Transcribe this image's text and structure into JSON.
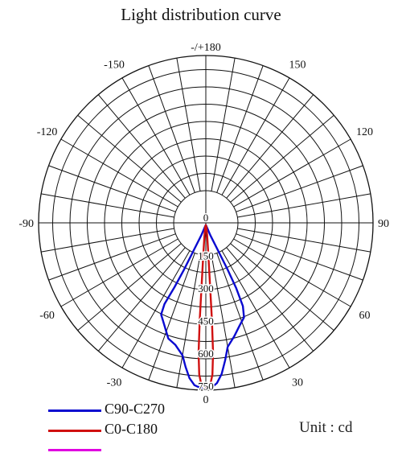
{
  "chart_data": {
    "type": "polar-line",
    "title": "Light distribution curve",
    "unit_label": "Unit : cd",
    "angle_labels": [
      {
        "angle": 0,
        "text": "0"
      },
      {
        "angle": 30,
        "text": "30"
      },
      {
        "angle": -30,
        "text": "-30"
      },
      {
        "angle": 60,
        "text": "60"
      },
      {
        "angle": -60,
        "text": "-60"
      },
      {
        "angle": 90,
        "text": "90"
      },
      {
        "angle": -90,
        "text": "-90"
      },
      {
        "angle": 120,
        "text": "120"
      },
      {
        "angle": -120,
        "text": "-120"
      },
      {
        "angle": 150,
        "text": "150"
      },
      {
        "angle": -150,
        "text": "-150"
      },
      {
        "angle": 180,
        "text": "-/+180"
      }
    ],
    "radial_ticks": [
      "0",
      "150",
      "300",
      "450",
      "600",
      "750"
    ],
    "radial_max": 750,
    "series": [
      {
        "name": "C90-C270",
        "color": "#0a0ad0",
        "points": [
          {
            "angle": 0,
            "value": 760
          },
          {
            "angle": 2,
            "value": 760
          },
          {
            "angle": 4,
            "value": 740
          },
          {
            "angle": 6,
            "value": 700
          },
          {
            "angle": 8,
            "value": 640
          },
          {
            "angle": 10,
            "value": 580
          },
          {
            "angle": 14,
            "value": 540
          },
          {
            "angle": 18,
            "value": 500
          },
          {
            "angle": 22,
            "value": 470
          },
          {
            "angle": 24,
            "value": 420
          },
          {
            "angle": 25,
            "value": 330
          },
          {
            "angle": 25,
            "value": 240
          },
          {
            "angle": 24,
            "value": 150
          },
          {
            "angle": 20,
            "value": 60
          },
          {
            "angle": 10,
            "value": 15
          },
          {
            "angle": 0,
            "value": 10
          },
          {
            "angle": -10,
            "value": 15
          },
          {
            "angle": -20,
            "value": 60
          },
          {
            "angle": -24,
            "value": 150
          },
          {
            "angle": -25,
            "value": 240
          },
          {
            "angle": -26,
            "value": 330
          },
          {
            "angle": -27,
            "value": 420
          },
          {
            "angle": -26,
            "value": 470
          },
          {
            "angle": -22,
            "value": 510
          },
          {
            "angle": -18,
            "value": 560
          },
          {
            "angle": -14,
            "value": 580
          },
          {
            "angle": -10,
            "value": 620
          },
          {
            "angle": -8,
            "value": 670
          },
          {
            "angle": -6,
            "value": 720
          },
          {
            "angle": -4,
            "value": 750
          },
          {
            "angle": -2,
            "value": 760
          },
          {
            "angle": 0,
            "value": 760
          }
        ]
      },
      {
        "name": "C0-C180",
        "color": "#d01010",
        "points": [
          {
            "angle": 0,
            "value": 760
          },
          {
            "angle": 1.5,
            "value": 750
          },
          {
            "angle": 2.5,
            "value": 700
          },
          {
            "angle": 3.2,
            "value": 600
          },
          {
            "angle": 3.6,
            "value": 450
          },
          {
            "angle": 3.8,
            "value": 300
          },
          {
            "angle": 4.5,
            "value": 150
          },
          {
            "angle": 6,
            "value": 60
          },
          {
            "angle": 8,
            "value": 20
          },
          {
            "angle": 0,
            "value": 10
          },
          {
            "angle": -8,
            "value": 20
          },
          {
            "angle": -6,
            "value": 60
          },
          {
            "angle": -4.5,
            "value": 150
          },
          {
            "angle": -3.8,
            "value": 300
          },
          {
            "angle": -3.6,
            "value": 450
          },
          {
            "angle": -3.2,
            "value": 600
          },
          {
            "angle": -2.5,
            "value": 700
          },
          {
            "angle": -1.5,
            "value": 750
          },
          {
            "angle": 0,
            "value": 760
          }
        ]
      },
      {
        "name": "",
        "color": "#e000e0",
        "points": []
      }
    ]
  }
}
